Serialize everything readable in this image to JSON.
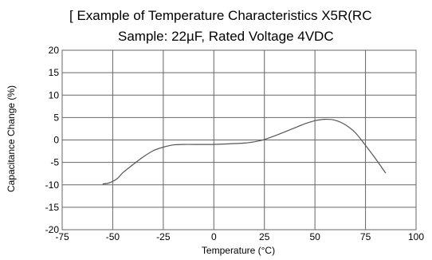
{
  "chart_data": {
    "type": "line",
    "title": "[ Example of  Temperature Characteristics X5R(RC",
    "subtitle": "Sample: 22µF, Rated Voltage 4VDC",
    "xlabel": "Temperature (°C)",
    "ylabel": "Capacitance Change (%)",
    "xlim": [
      -75,
      100
    ],
    "ylim": [
      -20,
      20
    ],
    "x_ticks": [
      -75,
      -50,
      -25,
      0,
      25,
      50,
      75,
      100
    ],
    "y_ticks": [
      20,
      15,
      10,
      5,
      0,
      -5,
      -10,
      -15,
      -20
    ],
    "x_tick_labels": [
      "-75",
      "-50",
      "-25",
      "0",
      "25",
      "50",
      "75",
      "100"
    ],
    "y_tick_labels": [
      "20",
      "15",
      "10",
      "5",
      "0",
      "-5",
      "-10",
      "-15",
      "-20"
    ],
    "grid": true,
    "series": [
      {
        "x": [
          -55,
          -52,
          -48,
          -45,
          -40,
          -35,
          -30,
          -25,
          -20,
          -15,
          -10,
          -5,
          0,
          5,
          10,
          15,
          20,
          25,
          30,
          35,
          40,
          45,
          50,
          55,
          60,
          65,
          70,
          75,
          80,
          85
        ],
        "y": [
          -9.8,
          -9.6,
          -8.7,
          -7.3,
          -5.5,
          -3.8,
          -2.4,
          -1.6,
          -1.1,
          -1.0,
          -1.0,
          -1.0,
          -1.0,
          -0.9,
          -0.8,
          -0.7,
          -0.4,
          0.1,
          0.9,
          1.8,
          2.7,
          3.6,
          4.3,
          4.6,
          4.4,
          3.4,
          1.6,
          -1.2,
          -4.2,
          -7.4
        ]
      }
    ]
  }
}
